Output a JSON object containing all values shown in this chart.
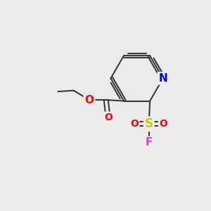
{
  "background_color": "#ebebeb",
  "bond_color": "#3a3a3a",
  "atom_colors": {
    "N": "#0000ff",
    "O": "#ff0000",
    "S": "#cccc00",
    "F": "#cc44cc",
    "C": "#3a3a3a"
  },
  "font_size": 10,
  "lw": 1.5,
  "figsize": [
    3.0,
    3.0
  ],
  "dpi": 100,
  "xlim": [
    0,
    10
  ],
  "ylim": [
    0,
    10
  ]
}
